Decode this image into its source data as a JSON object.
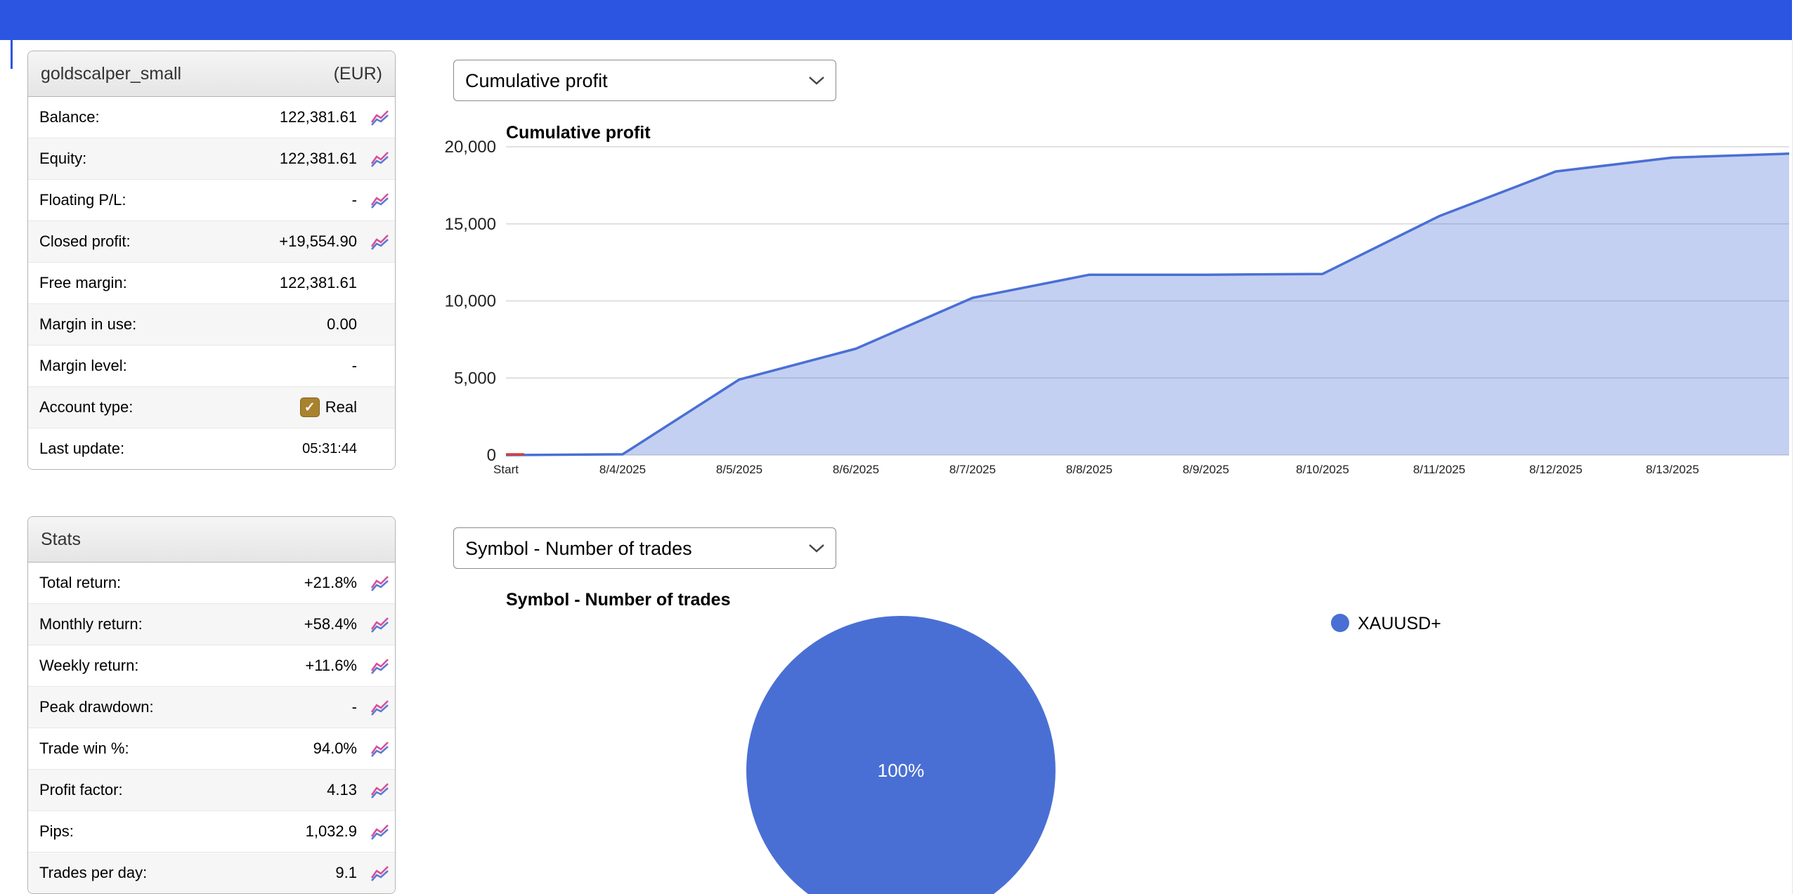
{
  "page": {
    "topbar_color": "#2c55e2",
    "background": "#ffffff"
  },
  "account_panel": {
    "title": "goldscalper_small",
    "currency": "(EUR)",
    "checkbox_color": "#a9822d",
    "rows": [
      {
        "label": "Balance:",
        "value": "122,381.61",
        "icon": true
      },
      {
        "label": "Equity:",
        "value": "122,381.61",
        "icon": true
      },
      {
        "label": "Floating P/L:",
        "value": "-",
        "icon": true
      },
      {
        "label": "Closed profit:",
        "value": "+19,554.90",
        "icon": true
      },
      {
        "label": "Free margin:",
        "value": "122,381.61",
        "icon": false
      },
      {
        "label": "Margin in use:",
        "value": "0.00",
        "icon": false
      },
      {
        "label": "Margin level:",
        "value": "-",
        "icon": false
      },
      {
        "label": "Account type:",
        "value": "Real",
        "icon": false,
        "checkbox": true
      },
      {
        "label": "Last update:",
        "value": "05:31:44",
        "icon": false,
        "small": true
      }
    ]
  },
  "stats_panel": {
    "title": "Stats",
    "rows": [
      {
        "label": "Total return:",
        "value": "+21.8%",
        "icon": true
      },
      {
        "label": "Monthly return:",
        "value": "+58.4%",
        "icon": true
      },
      {
        "label": "Weekly return:",
        "value": "+11.6%",
        "icon": true
      },
      {
        "label": "Peak drawdown:",
        "value": "-",
        "icon": true
      },
      {
        "label": "Trade win %:",
        "value": "94.0%",
        "icon": true
      },
      {
        "label": "Profit factor:",
        "value": "4.13",
        "icon": true
      },
      {
        "label": "Pips:",
        "value": "1,032.9",
        "icon": true
      },
      {
        "label": "Trades per day:",
        "value": "9.1",
        "icon": true
      }
    ]
  },
  "selectors": {
    "chart1": "Cumulative profit",
    "chart2": "Symbol - Number of trades"
  },
  "icons": {
    "row_icon": "sparkline-chart-icon",
    "account_type_icon": "checked-checkbox-icon",
    "select_icon": "chevron-down-icon"
  },
  "chart_data": [
    {
      "type": "area",
      "title": "Cumulative profit",
      "x": [
        "Start",
        "8/4/2025",
        "8/5/2025",
        "8/6/2025",
        "8/7/2025",
        "8/8/2025",
        "8/9/2025",
        "8/10/2025",
        "8/11/2025",
        "8/12/2025",
        "8/13/2025"
      ],
      "values": [
        0,
        50,
        4900,
        6900,
        10200,
        11700,
        11700,
        11750,
        15500,
        18400,
        19300
      ],
      "end_value": 19555,
      "ylim": [
        0,
        20000
      ],
      "yticks": [
        0,
        5000,
        10000,
        15000,
        20000
      ],
      "grid": true,
      "legend": "none",
      "line_color": "#4a6fd4",
      "fill_color": "rgba(74,111,212,0.33)",
      "start_marker_color": "#d4403a",
      "xlabel": "",
      "ylabel": ""
    },
    {
      "type": "pie",
      "title": "Symbol - Number of trades",
      "labels": [
        "XAUUSD+"
      ],
      "values": [
        100
      ],
      "slice_label": "100%",
      "color": "#4a6fd4",
      "legend_position": "right"
    }
  ]
}
